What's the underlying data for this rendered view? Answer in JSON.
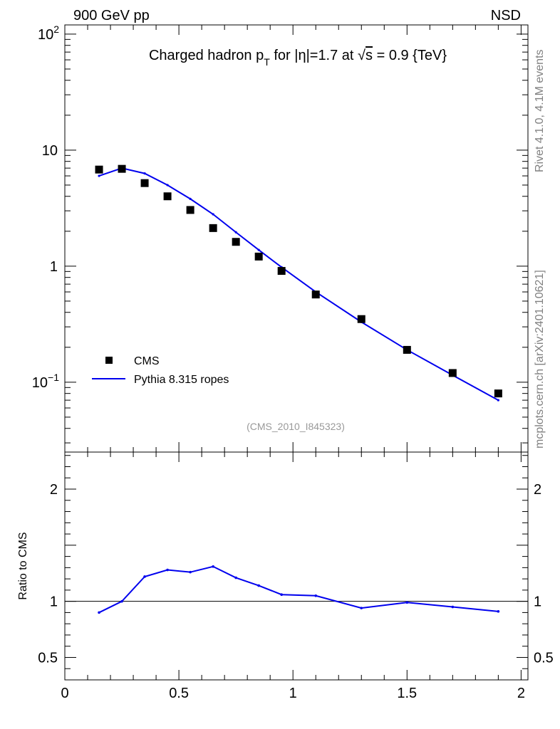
{
  "header": {
    "left": "900 GeV pp",
    "right": "NSD",
    "title_prefix": "Charged hadron p",
    "title_sub": "T",
    "title_mid": " for |",
    "title_eta": "η",
    "title_suffix": "|=1.7 at ",
    "title_sqrt": "√",
    "title_s": "s",
    "title_end": " = 0.9 {TeV}"
  },
  "side": {
    "rivet": "Rivet 4.1.0,  4.1M events",
    "mcplots": "mcplots.cern.ch [arXiv:2401.10621]"
  },
  "analysis_label": "(CMS_2010_I845323)",
  "legend": {
    "data_label": "CMS",
    "mc_label": "Pythia 8.315 ropes"
  },
  "colors": {
    "data": "#000000",
    "mc": "#0000ee",
    "axis": "#000000",
    "side_text": "#808080",
    "analysis": "#999999"
  },
  "chart_data": [
    {
      "type": "scatter",
      "panel": "main",
      "yscale": "log",
      "xlim": [
        0,
        2.03
      ],
      "ylim": [
        0.025,
        120
      ],
      "ylabel": "",
      "xlabel": "",
      "ytick_labels": [
        {
          "value": 100,
          "label": "10",
          "exp": "2"
        },
        {
          "value": 10,
          "label": "10",
          "exp": ""
        },
        {
          "value": 1,
          "label": "1",
          "exp": ""
        },
        {
          "value": 0.1,
          "label": "10",
          "exp": "−1"
        }
      ],
      "series": [
        {
          "name": "CMS",
          "style": "markers",
          "x": [
            0.15,
            0.25,
            0.35,
            0.45,
            0.55,
            0.65,
            0.75,
            0.85,
            0.95,
            1.1,
            1.3,
            1.5,
            1.7,
            1.9
          ],
          "y": [
            6.8,
            6.9,
            5.2,
            4.0,
            3.05,
            2.13,
            1.62,
            1.21,
            0.91,
            0.57,
            0.35,
            0.19,
            0.12,
            0.08
          ]
        },
        {
          "name": "Pythia 8.315 ropes",
          "style": "line",
          "x": [
            0.15,
            0.25,
            0.35,
            0.45,
            0.55,
            0.65,
            0.75,
            0.85,
            0.95,
            1.1,
            1.3,
            1.5,
            1.7,
            1.9
          ],
          "y": [
            6.0,
            7.0,
            6.3,
            5.0,
            3.8,
            2.8,
            1.96,
            1.38,
            0.98,
            0.6,
            0.33,
            0.19,
            0.115,
            0.07
          ]
        }
      ]
    },
    {
      "type": "line",
      "panel": "ratio",
      "ylabel": "Ratio to CMS",
      "xlim": [
        0,
        2.03
      ],
      "ylim": [
        0.3,
        2.33
      ],
      "xtick_labels": [
        "0",
        "0.5",
        "1",
        "1.5",
        "2"
      ],
      "ytick_labels": [
        "0.5",
        "1",
        "2"
      ],
      "reference": 1.0,
      "series": [
        {
          "name": "Pythia 8.315 ropes / CMS",
          "x": [
            0.15,
            0.25,
            0.35,
            0.45,
            0.55,
            0.65,
            0.75,
            0.85,
            0.95,
            1.1,
            1.3,
            1.5,
            1.7,
            1.9
          ],
          "y": [
            0.9,
            1.0,
            1.22,
            1.28,
            1.26,
            1.31,
            1.21,
            1.14,
            1.06,
            1.05,
            0.94,
            0.99,
            0.95,
            0.91
          ]
        }
      ]
    }
  ]
}
